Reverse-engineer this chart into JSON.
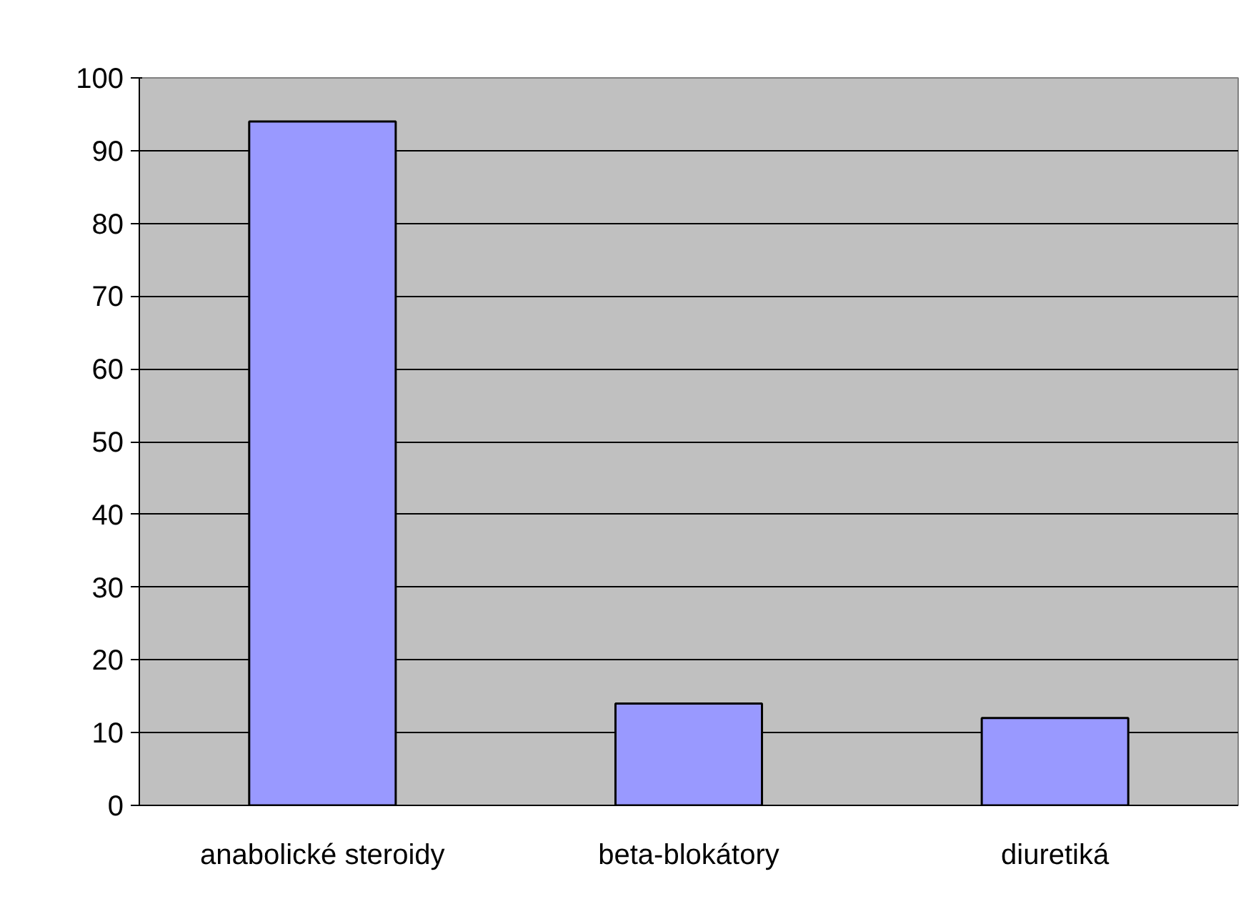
{
  "chart_data": {
    "type": "bar",
    "categories": [
      "anabolické steroidy",
      "beta-blokátory",
      "diuretiká"
    ],
    "values": [
      94,
      14,
      12
    ],
    "color": "#9999ff",
    "ylim": [
      0,
      100
    ],
    "yticks": [
      0,
      10,
      20,
      30,
      40,
      50,
      60,
      70,
      80,
      90,
      100
    ],
    "grid": "y"
  }
}
